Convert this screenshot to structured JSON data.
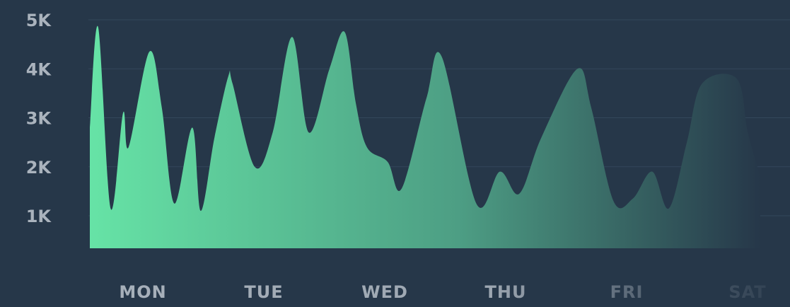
{
  "chart_data": {
    "type": "area",
    "title": "",
    "xlabel": "",
    "ylabel": "",
    "ylim": [
      0,
      5000
    ],
    "y_ticks": [
      {
        "value": 1000,
        "label": "1K"
      },
      {
        "value": 2000,
        "label": "2K"
      },
      {
        "value": 3000,
        "label": "3K"
      },
      {
        "value": 4000,
        "label": "4K"
      },
      {
        "value": 5000,
        "label": "5K"
      }
    ],
    "categories": [
      "MON",
      "TUE",
      "WED",
      "THU",
      "FRI",
      "SAT"
    ],
    "grid": true,
    "legend": "none",
    "x": [
      0,
      0.06,
      0.15,
      0.24,
      0.28,
      0.43,
      0.52,
      0.61,
      0.74,
      0.8,
      0.9,
      1.0,
      1.03,
      1.19,
      1.32,
      1.46,
      1.58,
      1.73,
      1.84,
      1.92,
      2.0,
      2.15,
      2.25,
      2.43,
      2.54,
      2.79,
      2.96,
      3.1,
      3.26,
      3.52,
      3.62,
      3.78,
      3.92,
      4.06,
      4.18,
      4.31,
      4.42,
      4.67,
      4.75,
      4.84
    ],
    "values": [
      2800,
      4850,
      1150,
      3100,
      2400,
      4350,
      3200,
      1250,
      2800,
      1100,
      2600,
      3850,
      3700,
      2000,
      2700,
      4650,
      2700,
      4000,
      4750,
      3300,
      2400,
      2100,
      1550,
      3400,
      4250,
      1250,
      1900,
      1450,
      2600,
      4000,
      3200,
      1300,
      1350,
      1900,
      1150,
      2500,
      3700,
      3800,
      2700,
      1800
    ],
    "colors": {
      "background": "#263749",
      "fill_start": "#66e3a6",
      "fill_mid": "#4d9e84",
      "fill_end": "#263749",
      "grid": "#33475b",
      "tick_text": "#aab3bd"
    }
  }
}
